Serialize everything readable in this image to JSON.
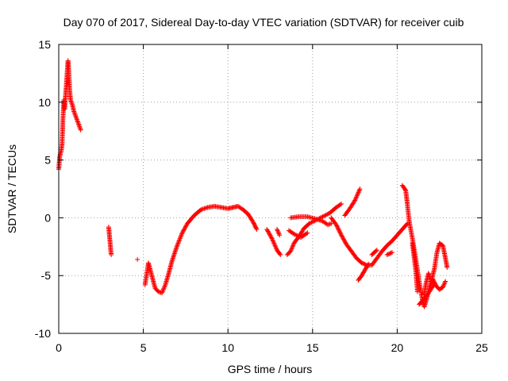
{
  "chart_data": {
    "type": "scatter",
    "title": "Day 070 of 2017, Sidereal Day-to-day VTEC variation (SDTVAR) for receiver cuib",
    "xlabel": "GPS time / hours",
    "ylabel": "SDTVAR / TECUs",
    "xlim": [
      0,
      25
    ],
    "ylim": [
      -10,
      15
    ],
    "xticks": [
      0,
      5,
      10,
      15,
      20,
      25
    ],
    "yticks": [
      -10,
      -5,
      0,
      5,
      10,
      15
    ],
    "xtick_labels": [
      "0",
      "5",
      "10",
      "15",
      "20",
      "25"
    ],
    "ytick_labels": [
      "-10",
      "-5",
      "0",
      "5",
      "10",
      "15"
    ],
    "grid": true,
    "legend": "none",
    "marker": "+",
    "series": [
      {
        "name": "SDTVAR",
        "color": "#ff0000",
        "segments": [
          [
            [
              0.0,
              4.2
            ],
            [
              0.05,
              5.2
            ],
            [
              0.1,
              5.6
            ],
            [
              0.15,
              5.8
            ],
            [
              0.2,
              6.4
            ],
            [
              0.25,
              8.6
            ],
            [
              0.3,
              10.2
            ],
            [
              0.35,
              9.4
            ],
            [
              0.4,
              10.5
            ],
            [
              0.45,
              11.5
            ],
            [
              0.5,
              12.6
            ],
            [
              0.55,
              13.6
            ],
            [
              0.6,
              12.5
            ],
            [
              0.65,
              11.0
            ],
            [
              0.7,
              10.2
            ],
            [
              0.8,
              9.8
            ],
            [
              0.9,
              9.2
            ],
            [
              1.0,
              8.8
            ],
            [
              1.1,
              8.4
            ],
            [
              1.2,
              8.0
            ],
            [
              1.3,
              7.6
            ]
          ],
          [
            [
              2.95,
              -0.8
            ],
            [
              3.0,
              -1.6
            ],
            [
              3.05,
              -2.4
            ],
            [
              3.1,
              -3.2
            ]
          ],
          [
            [
              4.65,
              -3.6
            ]
          ],
          [
            [
              5.1,
              -5.8
            ],
            [
              5.3,
              -3.9
            ],
            [
              5.5,
              -5.0
            ],
            [
              5.7,
              -6.1
            ],
            [
              5.9,
              -6.4
            ],
            [
              6.1,
              -6.5
            ],
            [
              6.3,
              -5.8
            ],
            [
              6.5,
              -4.8
            ],
            [
              6.7,
              -3.7
            ],
            [
              7.0,
              -2.4
            ],
            [
              7.3,
              -1.3
            ],
            [
              7.6,
              -0.5
            ],
            [
              8.0,
              0.2
            ],
            [
              8.4,
              0.7
            ],
            [
              8.8,
              0.9
            ],
            [
              9.2,
              1.0
            ],
            [
              9.6,
              0.9
            ],
            [
              10.0,
              0.8
            ],
            [
              10.3,
              0.9
            ],
            [
              10.6,
              1.0
            ],
            [
              10.9,
              0.7
            ],
            [
              11.2,
              0.3
            ],
            [
              11.5,
              -0.4
            ],
            [
              11.7,
              -1.0
            ]
          ],
          [
            [
              12.3,
              -1.0
            ],
            [
              12.6,
              -1.8
            ],
            [
              12.9,
              -2.8
            ],
            [
              13.1,
              -3.2
            ]
          ],
          [
            [
              12.9,
              -1.0
            ],
            [
              13.05,
              -1.5
            ]
          ],
          [
            [
              13.5,
              -3.2
            ],
            [
              13.7,
              -2.9
            ],
            [
              13.9,
              -2.2
            ],
            [
              14.2,
              -1.6
            ],
            [
              14.5,
              -0.9
            ],
            [
              14.8,
              -0.5
            ],
            [
              15.2,
              -0.2
            ],
            [
              15.6,
              0.1
            ],
            [
              16.0,
              0.4
            ],
            [
              16.4,
              0.9
            ],
            [
              16.7,
              1.2
            ]
          ],
          [
            [
              13.7,
              0.0
            ],
            [
              14.2,
              0.1
            ],
            [
              14.7,
              0.1
            ],
            [
              15.2,
              -0.1
            ],
            [
              15.6,
              -0.3
            ],
            [
              15.9,
              -0.6
            ],
            [
              16.1,
              -0.5
            ]
          ],
          [
            [
              13.6,
              -1.1
            ],
            [
              13.9,
              -1.4
            ],
            [
              14.3,
              -1.7
            ],
            [
              14.7,
              -1.3
            ]
          ],
          [
            [
              16.1,
              0.0
            ],
            [
              16.4,
              -0.6
            ],
            [
              16.7,
              -1.5
            ],
            [
              17.0,
              -2.3
            ],
            [
              17.3,
              -2.9
            ],
            [
              17.6,
              -3.5
            ],
            [
              17.9,
              -3.9
            ],
            [
              18.2,
              -4.1
            ],
            [
              18.5,
              -4.1
            ],
            [
              18.8,
              -3.5
            ],
            [
              19.1,
              -2.9
            ],
            [
              19.4,
              -2.4
            ],
            [
              19.7,
              -2.0
            ],
            [
              20.0,
              -1.5
            ],
            [
              20.3,
              -1.0
            ],
            [
              20.6,
              -0.5
            ]
          ],
          [
            [
              16.9,
              0.2
            ],
            [
              17.2,
              0.8
            ],
            [
              17.5,
              1.5
            ],
            [
              17.8,
              2.5
            ]
          ],
          [
            [
              17.7,
              -5.4
            ],
            [
              17.9,
              -5.0
            ],
            [
              18.1,
              -4.5
            ],
            [
              18.3,
              -4.0
            ]
          ],
          [
            [
              18.5,
              -3.2
            ],
            [
              18.8,
              -2.8
            ]
          ],
          [
            [
              19.4,
              -3.2
            ],
            [
              19.7,
              -3.0
            ]
          ],
          [
            [
              20.3,
              2.8
            ],
            [
              20.5,
              2.4
            ],
            [
              20.6,
              1.2
            ],
            [
              20.7,
              -0.2
            ],
            [
              20.9,
              -1.8
            ],
            [
              21.1,
              -3.6
            ],
            [
              21.3,
              -5.5
            ],
            [
              21.5,
              -7.2
            ],
            [
              21.6,
              -7.7
            ],
            [
              21.75,
              -7.0
            ],
            [
              21.9,
              -6.0
            ],
            [
              22.1,
              -5.3
            ],
            [
              22.3,
              -5.9
            ],
            [
              22.5,
              -6.2
            ],
            [
              22.7,
              -6.0
            ],
            [
              22.85,
              -5.5
            ]
          ],
          [
            [
              21.3,
              -7.5
            ],
            [
              21.6,
              -7.0
            ],
            [
              21.9,
              -6.4
            ],
            [
              22.2,
              -5.7
            ]
          ],
          [
            [
              21.6,
              -6.6
            ],
            [
              21.7,
              -5.7
            ],
            [
              21.85,
              -4.8
            ],
            [
              22.0,
              -5.6
            ],
            [
              22.2,
              -4.4
            ],
            [
              22.35,
              -3.0
            ],
            [
              22.5,
              -2.2
            ],
            [
              22.7,
              -2.4
            ],
            [
              22.85,
              -3.5
            ],
            [
              22.95,
              -4.3
            ]
          ],
          [
            [
              20.9,
              -2.2
            ],
            [
              21.1,
              -4.6
            ],
            [
              21.2,
              -6.4
            ]
          ]
        ]
      }
    ]
  }
}
